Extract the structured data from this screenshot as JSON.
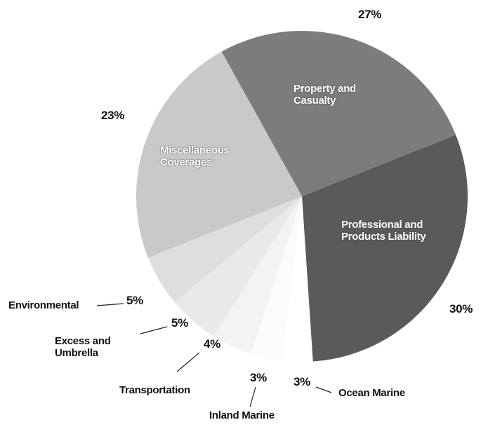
{
  "chart_data": {
    "type": "pie",
    "categories": [
      "Property and Casualty",
      "Professional and Products Liability",
      "Ocean Marine",
      "Inland Marine",
      "Transportation",
      "Excess and Umbrella",
      "Environmental",
      "Miscellaneous Coverages"
    ],
    "values": [
      27,
      30,
      3,
      3,
      4,
      5,
      5,
      23
    ],
    "value_labels": [
      "27%",
      "30%",
      "3%",
      "3%",
      "4%",
      "5%",
      "5%",
      "23%"
    ],
    "colors": [
      "#7c7c7c",
      "#5a5a5a",
      "#ffffff",
      "#fbfbfb",
      "#f3f3f3",
      "#e9e9e9",
      "#dedede",
      "#c9c9c9"
    ],
    "start_angle": -29
  }
}
